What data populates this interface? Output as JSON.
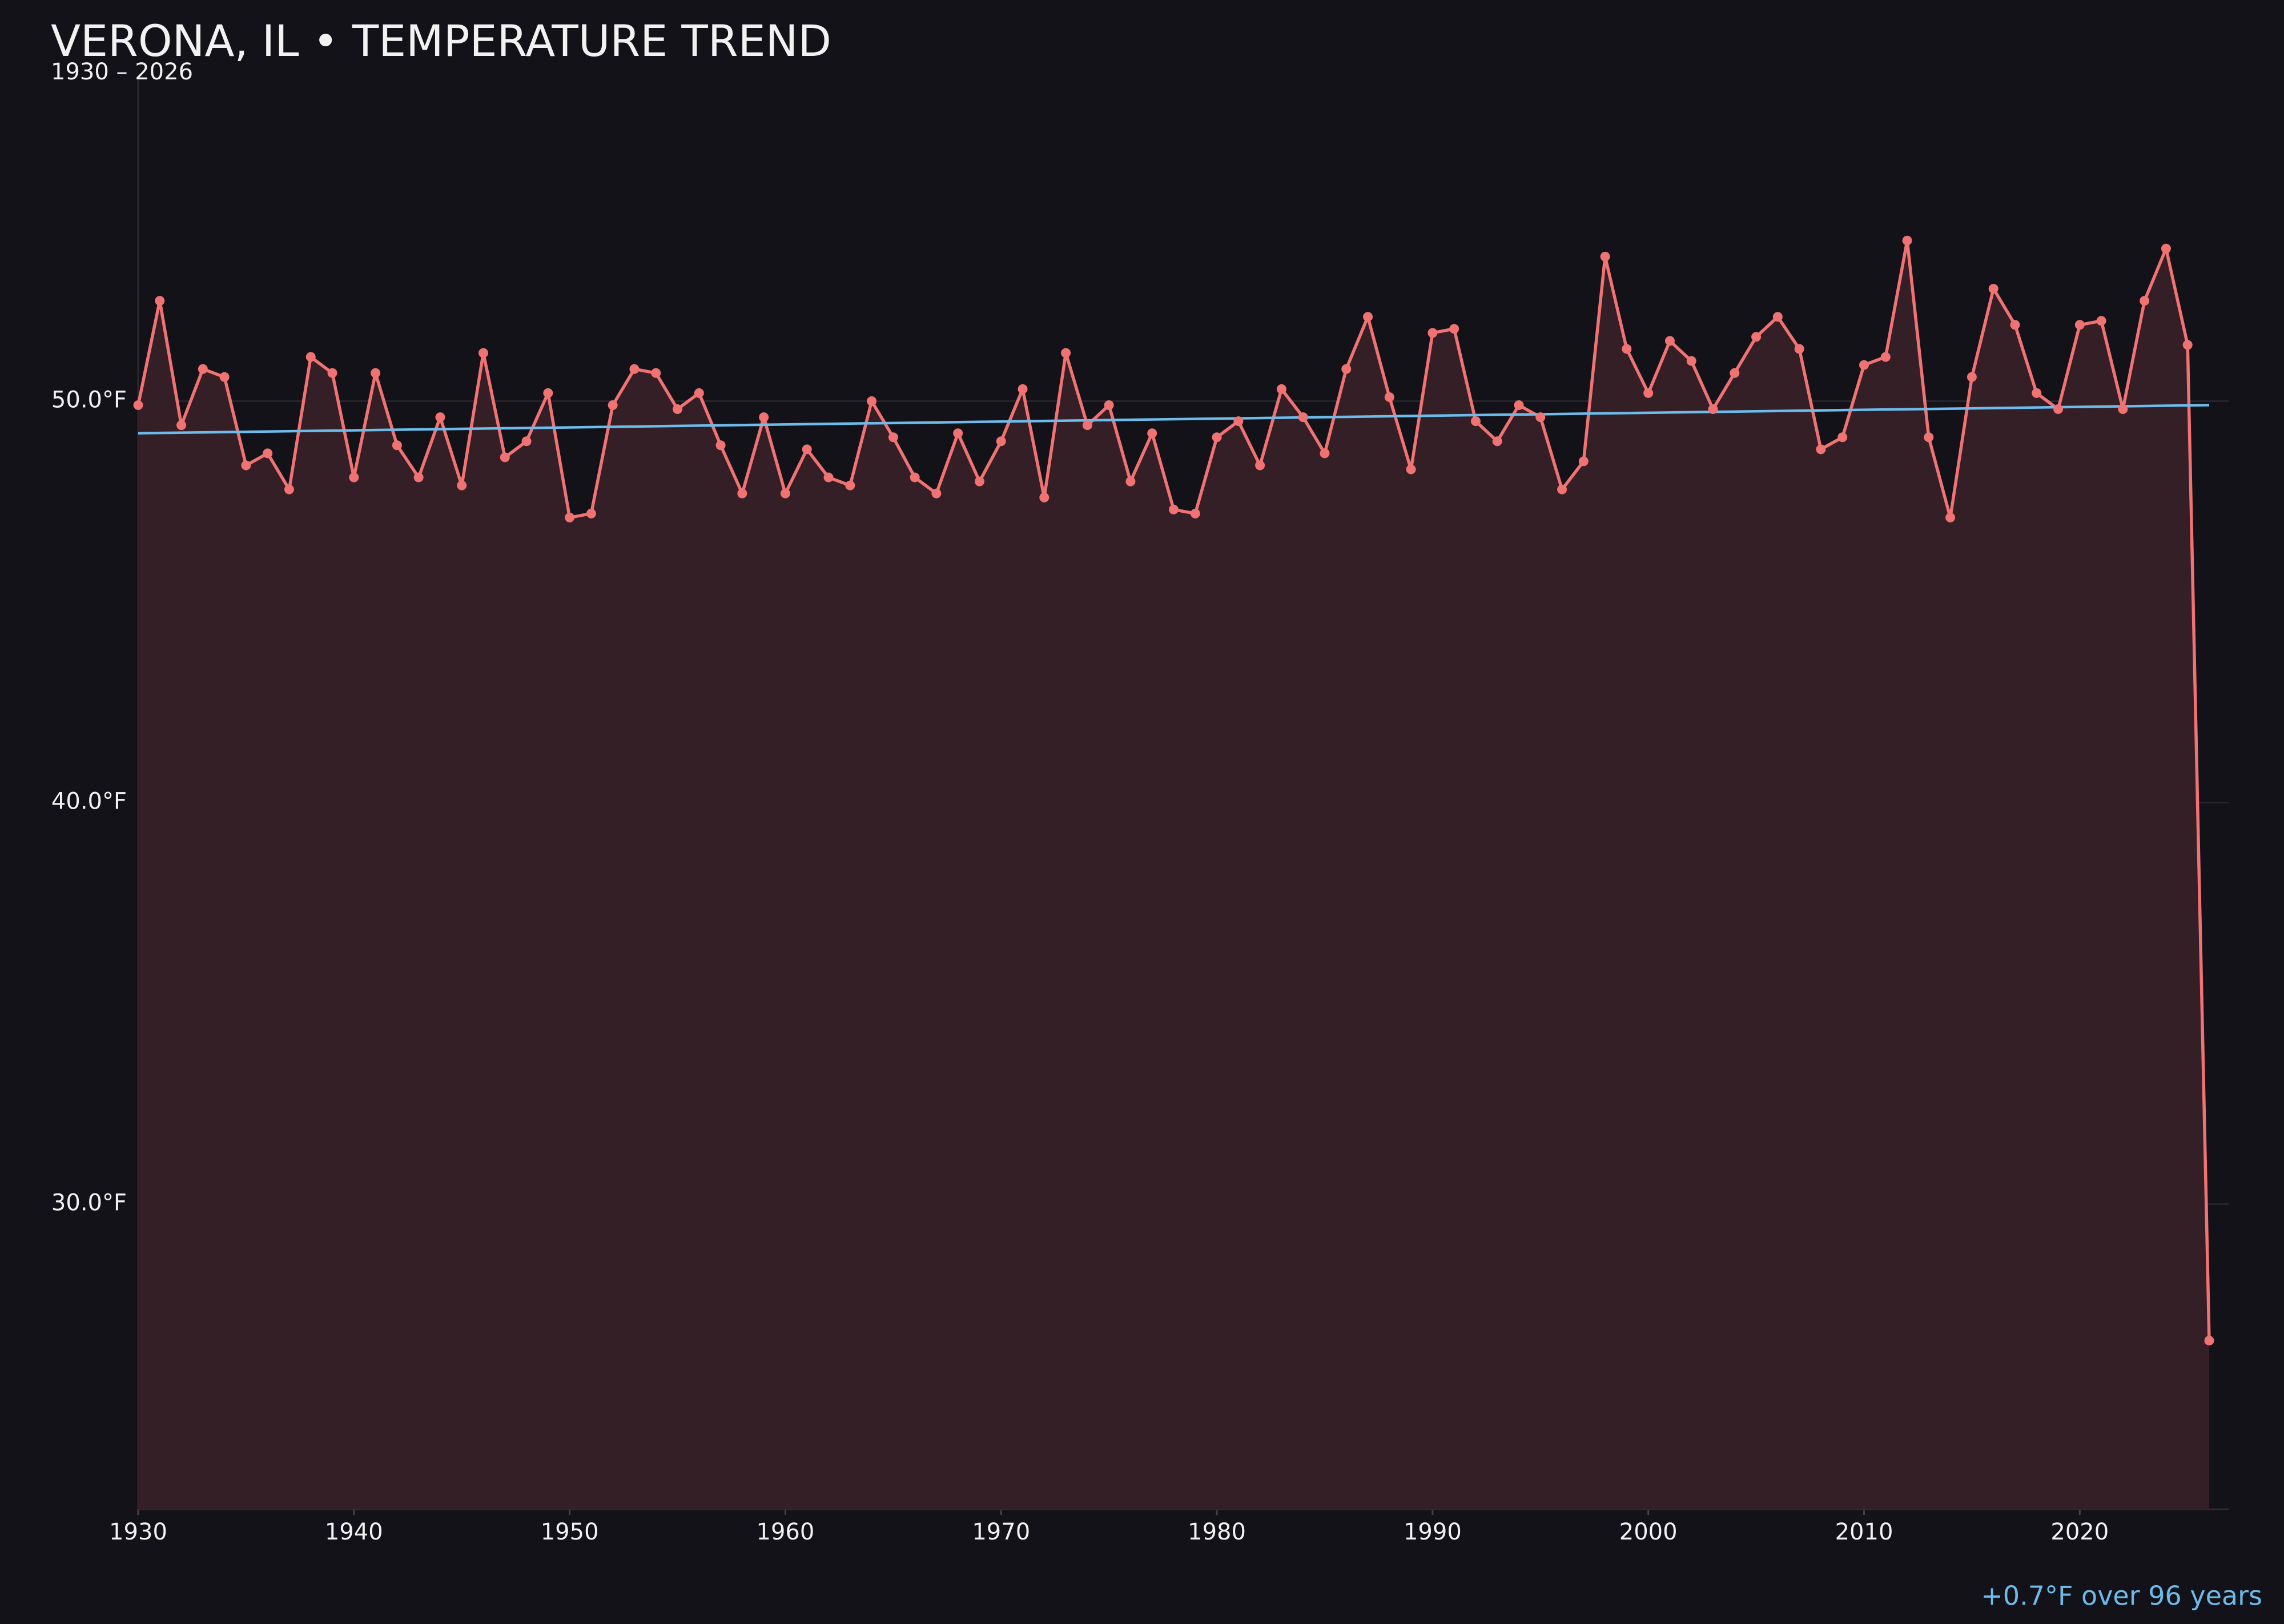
{
  "chart_data": {
    "type": "line",
    "title": "VERONA, IL • TEMPERATURE TREND",
    "subtitle": "1930 – 2026",
    "annotation": "+0.7°F over 96 years",
    "x": [
      1930,
      1931,
      1932,
      1933,
      1934,
      1935,
      1936,
      1937,
      1938,
      1939,
      1940,
      1941,
      1942,
      1943,
      1944,
      1945,
      1946,
      1947,
      1948,
      1949,
      1950,
      1951,
      1952,
      1953,
      1954,
      1955,
      1956,
      1957,
      1958,
      1959,
      1960,
      1961,
      1962,
      1963,
      1964,
      1965,
      1966,
      1967,
      1968,
      1969,
      1970,
      1971,
      1972,
      1973,
      1974,
      1975,
      1976,
      1977,
      1978,
      1979,
      1980,
      1981,
      1982,
      1983,
      1984,
      1985,
      1986,
      1987,
      1988,
      1989,
      1990,
      1991,
      1992,
      1993,
      1994,
      1995,
      1996,
      1997,
      1998,
      1999,
      2000,
      2001,
      2002,
      2003,
      2004,
      2005,
      2006,
      2007,
      2008,
      2009,
      2010,
      2011,
      2012,
      2013,
      2014,
      2015,
      2016,
      2017,
      2018,
      2019,
      2020,
      2021,
      2022,
      2023,
      2024,
      2025,
      2026
    ],
    "values": [
      49.9,
      52.5,
      49.4,
      50.8,
      50.6,
      48.4,
      48.7,
      47.8,
      51.1,
      50.7,
      48.1,
      50.7,
      48.9,
      48.1,
      49.6,
      47.9,
      51.2,
      48.6,
      49.0,
      50.2,
      47.1,
      47.2,
      49.9,
      50.8,
      50.7,
      49.8,
      50.2,
      48.9,
      47.7,
      49.6,
      47.7,
      48.8,
      48.1,
      47.9,
      50.0,
      49.1,
      48.1,
      47.7,
      49.2,
      48.0,
      49.0,
      50.3,
      47.6,
      51.2,
      49.4,
      49.9,
      48.0,
      49.2,
      47.3,
      47.2,
      49.1,
      49.5,
      48.4,
      50.3,
      49.6,
      48.7,
      50.8,
      52.1,
      50.1,
      48.3,
      51.7,
      51.8,
      49.5,
      49.0,
      49.9,
      49.6,
      47.8,
      48.5,
      53.6,
      51.3,
      50.2,
      51.5,
      51.0,
      49.8,
      50.7,
      51.6,
      52.1,
      51.3,
      48.8,
      49.1,
      50.9,
      51.1,
      54.0,
      49.1,
      47.1,
      50.6,
      52.8,
      51.9,
      50.2,
      49.8,
      51.9,
      52.0,
      49.8,
      52.5,
      53.8,
      51.4,
      26.6
    ],
    "color": "#f07272",
    "fill_color": "#341f26",
    "trend": {
      "x": [
        1930,
        2026
      ],
      "values": [
        49.2,
        49.9
      ],
      "color": "#6cbbea"
    },
    "xlim": [
      1930,
      2026.9
    ],
    "ylim": [
      22.4,
      58.0
    ],
    "xticks": [
      1930,
      1940,
      1950,
      1960,
      1970,
      1980,
      1990,
      2000,
      2010,
      2020
    ],
    "yticks": [
      {
        "value": 30,
        "label": "30.0°F"
      },
      {
        "value": 40,
        "label": "40.0°F"
      },
      {
        "value": 50,
        "label": "50.0°F"
      }
    ],
    "grid": true
  }
}
